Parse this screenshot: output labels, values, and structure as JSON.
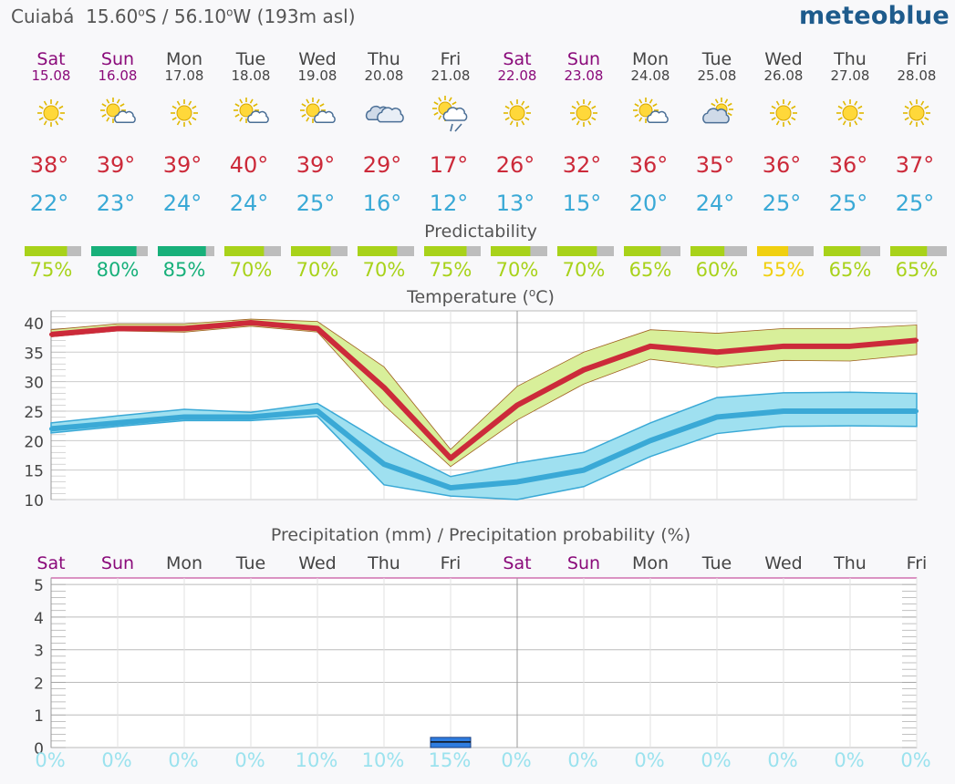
{
  "header": {
    "location": "Cuiabá",
    "lat": "15.60",
    "lat_hemi": "S",
    "lon": "56.10",
    "lon_hemi": "W",
    "altitude": "(193m asl)",
    "brand": "meteoblue"
  },
  "colors": {
    "weekend": "#8a0a7a",
    "weekday": "#444444",
    "max_temp": "#cc2a3a",
    "min_temp": "#3aa9d6",
    "max_band": "#d8ef9a",
    "min_band": "#9fe0f0",
    "precip_pct": "#9be2ee",
    "rain_bar": "#2f7de0"
  },
  "days": [
    {
      "day": "Sat",
      "date": "15.08",
      "weekend": true,
      "icon": "sun-icon",
      "tmax": "38°",
      "tmin": "22°",
      "predictability": 75,
      "pred_label": "75%",
      "pred_color": "#a8d21a",
      "precip_prob": "0%"
    },
    {
      "day": "Sun",
      "date": "16.08",
      "weekend": true,
      "icon": "sun-cloud-icon",
      "tmax": "39°",
      "tmin": "23°",
      "predictability": 80,
      "pred_label": "80%",
      "pred_color": "#18b07a",
      "precip_prob": "0%"
    },
    {
      "day": "Mon",
      "date": "17.08",
      "weekend": false,
      "icon": "sun-icon",
      "tmax": "39°",
      "tmin": "24°",
      "predictability": 85,
      "pred_label": "85%",
      "pred_color": "#18b07a",
      "precip_prob": "0%"
    },
    {
      "day": "Tue",
      "date": "18.08",
      "weekend": false,
      "icon": "sun-cloud-icon",
      "tmax": "40°",
      "tmin": "24°",
      "predictability": 70,
      "pred_label": "70%",
      "pred_color": "#a8d21a",
      "precip_prob": "0%"
    },
    {
      "day": "Wed",
      "date": "19.08",
      "weekend": false,
      "icon": "sun-cloud-icon",
      "tmax": "39°",
      "tmin": "25°",
      "predictability": 70,
      "pred_label": "70%",
      "pred_color": "#a8d21a",
      "precip_prob": "10%"
    },
    {
      "day": "Thu",
      "date": "20.08",
      "weekend": false,
      "icon": "cloud-icon",
      "tmax": "29°",
      "tmin": "16°",
      "predictability": 70,
      "pred_label": "70%",
      "pred_color": "#a8d21a",
      "precip_prob": "10%"
    },
    {
      "day": "Fri",
      "date": "21.08",
      "weekend": false,
      "icon": "sun-rain-icon",
      "tmax": "17°",
      "tmin": "12°",
      "predictability": 75,
      "pred_label": "75%",
      "pred_color": "#a8d21a",
      "precip_prob": "15%"
    },
    {
      "day": "Sat",
      "date": "22.08",
      "weekend": true,
      "icon": "sun-icon",
      "tmax": "26°",
      "tmin": "13°",
      "predictability": 70,
      "pred_label": "70%",
      "pred_color": "#a8d21a",
      "precip_prob": "0%"
    },
    {
      "day": "Sun",
      "date": "23.08",
      "weekend": true,
      "icon": "sun-icon",
      "tmax": "32°",
      "tmin": "15°",
      "predictability": 70,
      "pred_label": "70%",
      "pred_color": "#a8d21a",
      "precip_prob": "0%"
    },
    {
      "day": "Mon",
      "date": "24.08",
      "weekend": false,
      "icon": "sun-cloud-icon",
      "tmax": "36°",
      "tmin": "20°",
      "predictability": 65,
      "pred_label": "65%",
      "pred_color": "#a8d21a",
      "precip_prob": "0%"
    },
    {
      "day": "Tue",
      "date": "25.08",
      "weekend": false,
      "icon": "cloud-sun-icon",
      "tmax": "35°",
      "tmin": "24°",
      "predictability": 60,
      "pred_label": "60%",
      "pred_color": "#a8d21a",
      "precip_prob": "0%"
    },
    {
      "day": "Wed",
      "date": "26.08",
      "weekend": false,
      "icon": "sun-icon",
      "tmax": "36°",
      "tmin": "25°",
      "predictability": 55,
      "pred_label": "55%",
      "pred_color": "#f0d010",
      "precip_prob": "0%"
    },
    {
      "day": "Thu",
      "date": "27.08",
      "weekend": false,
      "icon": "sun-icon",
      "tmax": "36°",
      "tmin": "25°",
      "predictability": 65,
      "pred_label": "65%",
      "pred_color": "#a8d21a",
      "precip_prob": "0%"
    },
    {
      "day": "Fri",
      "date": "28.08",
      "weekend": false,
      "icon": "sun-icon",
      "tmax": "37°",
      "tmin": "25°",
      "predictability": 65,
      "pred_label": "65%",
      "pred_color": "#a8d21a",
      "precip_prob": "0%"
    }
  ],
  "predictability_title": "Predictability",
  "chart_data": [
    {
      "type": "line",
      "title": "Temperature (°C)",
      "categories": [
        "Sat",
        "Sun",
        "Mon",
        "Tue",
        "Wed",
        "Thu",
        "Fri",
        "Sat",
        "Sun",
        "Mon",
        "Tue",
        "Wed",
        "Thu",
        "Fri"
      ],
      "ylim": [
        10,
        42
      ],
      "yticks": [
        10,
        15,
        20,
        25,
        30,
        35,
        40
      ],
      "grid": true,
      "series": [
        {
          "values": [
            38,
            39,
            39,
            40,
            39,
            29,
            17,
            26,
            32,
            36,
            35,
            36,
            36,
            37
          ],
          "band_upper": [
            38.8,
            39.8,
            39.8,
            40.6,
            40.2,
            32.5,
            18.5,
            29.2,
            35,
            38.8,
            38.2,
            39,
            39,
            39.6
          ],
          "band_lower": [
            37.6,
            38.6,
            38.4,
            39.4,
            38.4,
            26,
            15.6,
            23.5,
            29.6,
            33.8,
            32.4,
            33.6,
            33.5,
            34.6
          ]
        },
        {
          "values": [
            22,
            23,
            24,
            24,
            25,
            16,
            12,
            13,
            15,
            20,
            24,
            25,
            25,
            25
          ],
          "band_upper": [
            23,
            24.2,
            25.3,
            24.8,
            26.3,
            19.5,
            13.9,
            16.2,
            18,
            23,
            27.3,
            28.1,
            28.2,
            28
          ],
          "band_lower": [
            21.3,
            22.4,
            23.4,
            23.4,
            24.1,
            12.5,
            10.6,
            10,
            12.2,
            17.3,
            21.2,
            22.4,
            22.5,
            22.4
          ]
        }
      ]
    },
    {
      "type": "bar",
      "title": "Precipitation (mm) / Precipitation probability (%)",
      "categories": [
        "Sat",
        "Sun",
        "Mon",
        "Tue",
        "Wed",
        "Thu",
        "Fri",
        "Sat",
        "Sun",
        "Mon",
        "Tue",
        "Wed",
        "Thu",
        "Fri"
      ],
      "ylim": [
        0,
        5.2
      ],
      "yticks": [
        0,
        1,
        2,
        3,
        4,
        5
      ],
      "values": [
        0,
        0,
        0,
        0,
        0,
        0,
        0.2,
        0,
        0,
        0,
        0,
        0,
        0,
        0
      ],
      "probabilities": [
        "0%",
        "0%",
        "0%",
        "0%",
        "10%",
        "10%",
        "15%",
        "0%",
        "0%",
        "0%",
        "0%",
        "0%",
        "0%",
        "0%"
      ],
      "grid": true
    }
  ]
}
